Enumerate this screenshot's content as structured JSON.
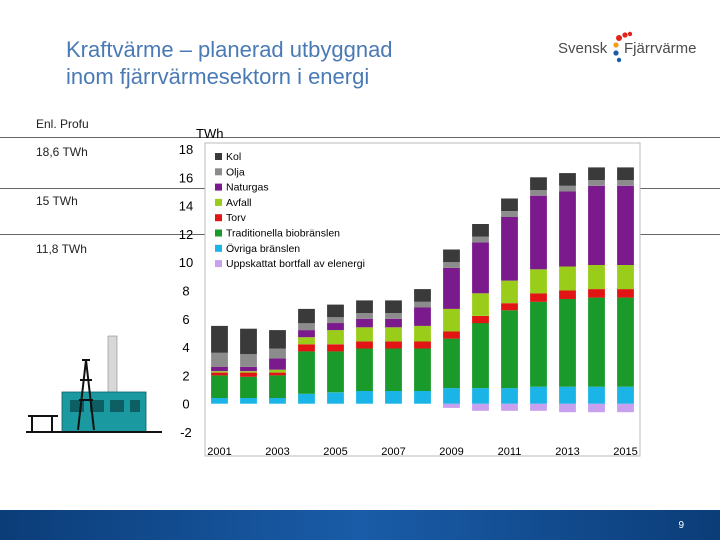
{
  "slide": {
    "title_line1": "Kraftvärme – planerad utbyggnad",
    "title_line2": "inom fjärrvärmesektorn i energi",
    "logo_left": "Svensk",
    "logo_right": "Fjärrvärme",
    "source": "Enl. Profu",
    "ref_lines": [
      "18,6 TWh",
      "15 TWh",
      "11,8 TWh"
    ],
    "page_number": "9"
  },
  "colors": {
    "title": "#4a7ab5",
    "bar": "#0b3d78"
  },
  "chart_data": {
    "type": "bar",
    "stacked": true,
    "ylabel": "TWh",
    "ylim": [
      -2,
      18
    ],
    "yticks": [
      -2,
      0,
      2,
      4,
      6,
      8,
      10,
      12,
      14,
      16,
      18
    ],
    "x": [
      2001,
      2002,
      2003,
      2004,
      2005,
      2006,
      2007,
      2008,
      2009,
      2010,
      2011,
      2012,
      2013,
      2014,
      2015
    ],
    "xtick_labels": [
      "2001",
      "2003",
      "2005",
      "2007",
      "2009",
      "2011",
      "2013",
      "2015"
    ],
    "legend_position": "top-left",
    "series": [
      {
        "name": "Kol",
        "color": "#3a3a3a",
        "values": [
          1.9,
          1.8,
          1.3,
          1.0,
          0.9,
          0.9,
          0.9,
          0.9,
          0.9,
          0.9,
          0.9,
          0.9,
          0.9,
          0.9,
          0.9
        ]
      },
      {
        "name": "Olja",
        "color": "#8c8c8c",
        "values": [
          1.0,
          0.9,
          0.7,
          0.5,
          0.4,
          0.4,
          0.4,
          0.4,
          0.4,
          0.4,
          0.4,
          0.4,
          0.4,
          0.4,
          0.4
        ]
      },
      {
        "name": "Naturgas",
        "color": "#7a1a8c",
        "values": [
          0.3,
          0.3,
          0.8,
          0.5,
          0.5,
          0.6,
          0.6,
          1.3,
          2.9,
          3.6,
          4.5,
          5.2,
          5.3,
          5.6,
          5.6
        ]
      },
      {
        "name": "Avfall",
        "color": "#9acd1a",
        "values": [
          0.1,
          0.1,
          0.2,
          0.5,
          1.0,
          1.0,
          1.0,
          1.1,
          1.6,
          1.6,
          1.6,
          1.7,
          1.7,
          1.7,
          1.7
        ]
      },
      {
        "name": "Torv",
        "color": "#e21414",
        "values": [
          0.2,
          0.3,
          0.2,
          0.5,
          0.5,
          0.5,
          0.5,
          0.5,
          0.5,
          0.5,
          0.5,
          0.6,
          0.6,
          0.6,
          0.6
        ]
      },
      {
        "name": "Traditionella biobränslen",
        "color": "#1a9a2a",
        "values": [
          1.6,
          1.5,
          1.6,
          3.0,
          2.9,
          3.0,
          3.0,
          3.0,
          3.5,
          4.6,
          5.5,
          6.0,
          6.2,
          6.3,
          6.3
        ]
      },
      {
        "name": "Övriga bränslen",
        "color": "#1ab4e6",
        "values": [
          0.4,
          0.4,
          0.4,
          0.7,
          0.8,
          0.9,
          0.9,
          0.9,
          1.1,
          1.1,
          1.1,
          1.2,
          1.2,
          1.2,
          1.2
        ]
      },
      {
        "name": "Uppskattat bortfall av elenergi",
        "color": "#c8a0f0",
        "values": [
          0,
          0,
          0,
          0,
          0,
          0,
          0,
          0,
          -0.3,
          -0.5,
          -0.5,
          -0.5,
          -0.6,
          -0.6,
          -0.6
        ]
      }
    ]
  }
}
